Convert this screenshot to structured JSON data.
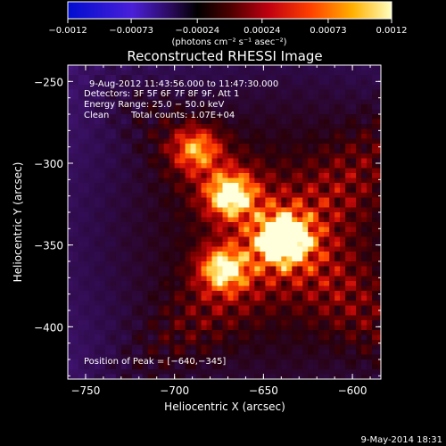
{
  "chart_data": {
    "type": "heatmap",
    "title": "Reconstructed RHESSI Image",
    "xlabel": "Heliocentric X (arcsec)",
    "ylabel": "Heliocentric Y (arcsec)",
    "xlim": [
      -760,
      -584
    ],
    "ylim": [
      -432,
      -240
    ],
    "x_ticks": [
      -750,
      -700,
      -650,
      -600
    ],
    "x_tick_labels": [
      "−750",
      "−700",
      "−650",
      "−600"
    ],
    "y_ticks": [
      -250,
      -300,
      -350,
      -400
    ],
    "y_tick_labels": [
      "−250",
      "−300",
      "−350",
      "−400"
    ],
    "colorbar": {
      "range": [
        -0.0012,
        0.0012
      ],
      "ticks": [
        -0.0012,
        -0.00073,
        -0.00024,
        0.00024,
        0.00073,
        0.0012
      ],
      "tick_labels": [
        "−0.0012",
        "−0.00073",
        "−0.00024",
        "0.00024",
        "0.00073",
        "0.0012"
      ],
      "units_label": "(photons cm⁻² s⁻¹ asec⁻²)"
    },
    "sources": [
      {
        "x": -640,
        "y": -345,
        "intensity": 1.0
      },
      {
        "x": -670,
        "y": -318,
        "intensity": 0.68
      },
      {
        "x": -674,
        "y": -363,
        "intensity": 0.62
      },
      {
        "x": -689,
        "y": -290,
        "intensity": 0.45
      }
    ],
    "grid": false
  },
  "annotations": {
    "time_range": "9-Aug-2012 11:43:56.000 to 11:47:30.000",
    "detectors": "Detectors: 3F 5F 6F 7F 8F 9F, Att 1",
    "energy_range": "Energy Range: 25.0 − 50.0 keV",
    "algorithm": "Clean",
    "total_counts": "Total counts: 1.07E+04",
    "peak_position": "Position of Peak = [−640,−345]"
  },
  "footer": {
    "date_stamp": "9-May-2014 18:31"
  },
  "colors": {
    "background": "#000000",
    "foreground": "#ffffff"
  }
}
